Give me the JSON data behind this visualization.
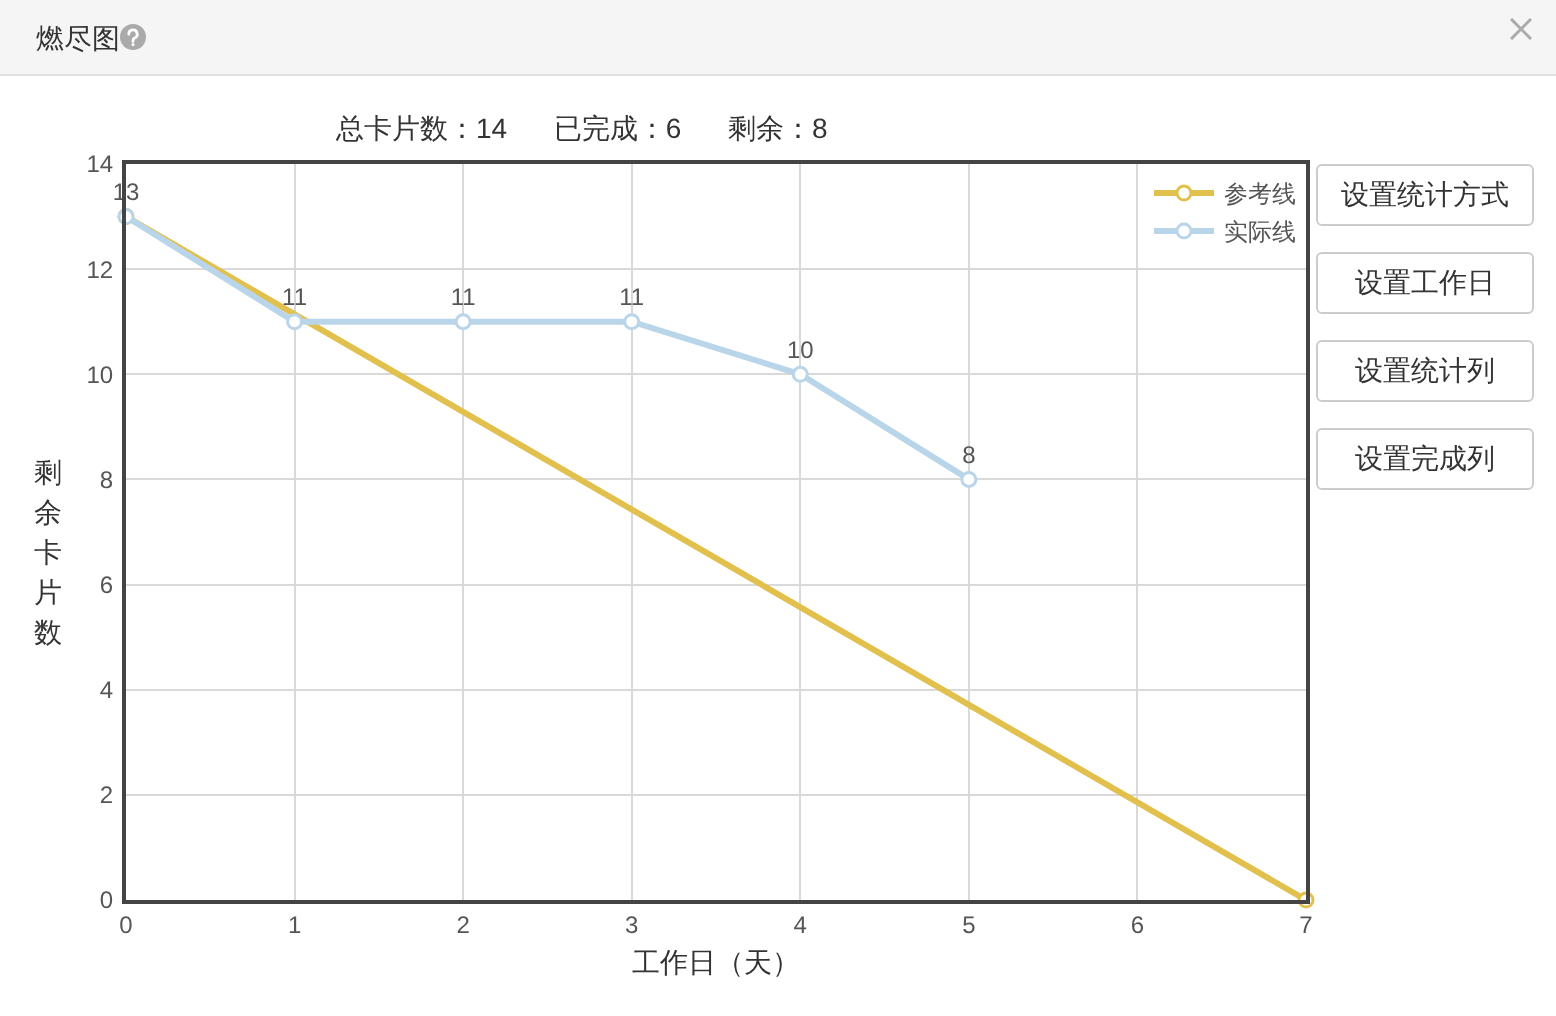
{
  "chart_data": {
    "type": "line",
    "title": "燃尽图",
    "subtitle": "总卡片数：14      已完成：6      剩余：8",
    "xlabel": "工作日（天）",
    "ylabel": "剩余卡片数",
    "annotations": [
      "设置统计方式",
      "设置工作日",
      "设置统计列",
      "设置完成列"
    ],
    "xlim": [
      0,
      7
    ],
    "xticks": [
      0,
      1,
      2,
      3,
      4,
      5,
      6,
      7
    ],
    "ylim": [
      0,
      14
    ],
    "yticks": [
      0,
      2,
      4,
      6,
      8,
      10,
      12,
      14
    ],
    "grid": true,
    "legend": "top right",
    "marker": "circle",
    "line_style": "solid",
    "series": [
      {
        "name": "参考线",
        "color": "#e2c04e",
        "x": [
          0,
          7
        ],
        "values": [
          13,
          0
        ]
      },
      {
        "name": "实际线",
        "color": "#b9d5ea",
        "x": [
          0,
          1,
          2,
          3,
          4,
          5
        ],
        "values": [
          13,
          11,
          11,
          11,
          10,
          8
        ],
        "value_labels": [
          "13",
          "11",
          "11",
          "11",
          "10",
          "8"
        ]
      }
    ]
  }
}
